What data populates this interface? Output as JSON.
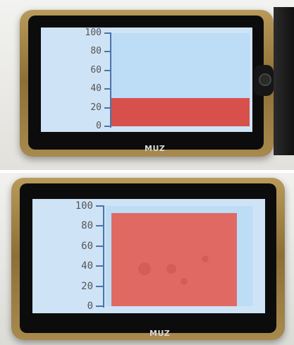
{
  "panels": [
    {
      "id": "top",
      "brand": "MUZ",
      "gauge": {
        "ticks": [
          "100",
          "80",
          "60",
          "40",
          "20",
          "0"
        ],
        "min": 0,
        "max": 100,
        "level": 30
      }
    },
    {
      "id": "bottom",
      "brand": "MUZ",
      "gauge": {
        "ticks": [
          "100",
          "80",
          "60",
          "40",
          "20",
          "0"
        ],
        "min": 0,
        "max": 100,
        "level": 93
      }
    }
  ],
  "colors": {
    "screen_background": "#cfe3f6",
    "bar_background": "#bddcf6",
    "bar_fill": "#d7504c",
    "axis": "#4b74a8",
    "device_frame": "#a8894e"
  },
  "icons": [
    "side-button-icon"
  ]
}
